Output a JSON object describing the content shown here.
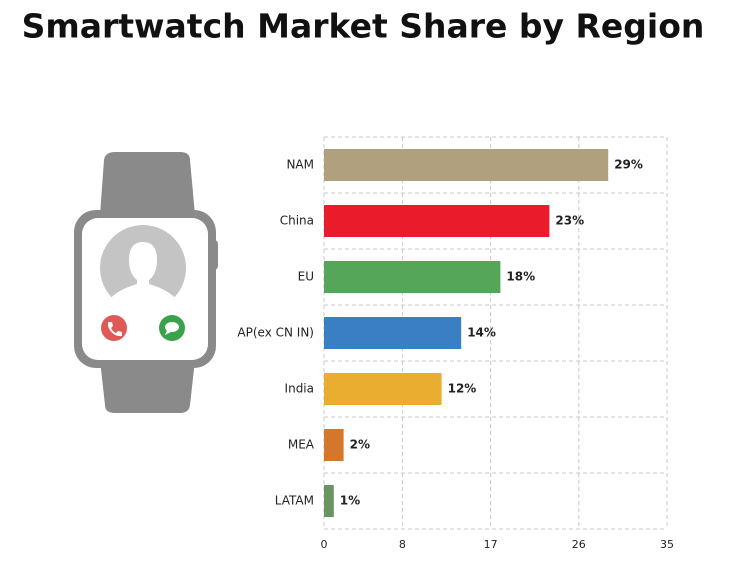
{
  "chart_data": {
    "type": "bar",
    "orientation": "horizontal",
    "title": "Smartwatch Market Share by Region",
    "categories": [
      "NAM",
      "China",
      "EU",
      "AP(ex CN IN)",
      "India",
      "MEA",
      "LATAM"
    ],
    "values": [
      29,
      23,
      18,
      14,
      12,
      2,
      1
    ],
    "value_labels": [
      "29%",
      "23%",
      "18%",
      "14%",
      "12%",
      "2%",
      "1%"
    ],
    "colors": [
      "#b0a07e",
      "#ea1c2b",
      "#56a65a",
      "#3a7ec4",
      "#e9ae2f",
      "#d5772a",
      "#6a9560"
    ],
    "xlim": [
      0,
      35
    ],
    "xticks": [
      0,
      8,
      17,
      26,
      35
    ],
    "grid": true
  }
}
